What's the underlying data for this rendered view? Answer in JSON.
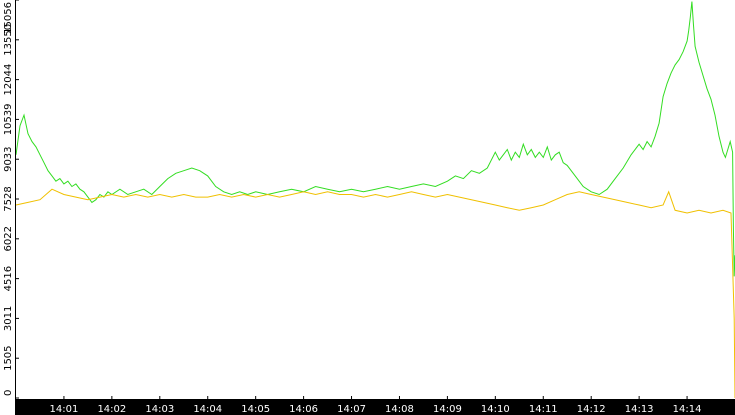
{
  "chart_data": {
    "type": "line",
    "title": "",
    "xlabel": "",
    "ylabel": "",
    "x_range": [
      "14:00:00",
      "14:15:00"
    ],
    "ylim": [
      0,
      15056
    ],
    "x_ticks": [
      "14:01",
      "14:02",
      "14:03",
      "14:04",
      "14:05",
      "14:06",
      "14:07",
      "14:08",
      "14:09",
      "14:10",
      "14:11",
      "14:12",
      "14:13",
      "14:14"
    ],
    "y_ticks": [
      "0",
      "1505",
      "3011",
      "4516",
      "6022",
      "7528",
      "9033",
      "10539",
      "12044",
      "13550",
      "15056"
    ],
    "grid": false,
    "legend": "none",
    "series": [
      {
        "color": "#33dd22",
        "points": [
          [
            "14:00:00",
            9200
          ],
          [
            "14:00:05",
            10300
          ],
          [
            "14:00:10",
            10700
          ],
          [
            "14:00:15",
            10000
          ],
          [
            "14:00:20",
            9700
          ],
          [
            "14:00:25",
            9500
          ],
          [
            "14:00:30",
            9200
          ],
          [
            "14:00:35",
            8900
          ],
          [
            "14:00:40",
            8600
          ],
          [
            "14:00:45",
            8400
          ],
          [
            "14:00:50",
            8200
          ],
          [
            "14:00:55",
            8300
          ],
          [
            "14:01:00",
            8100
          ],
          [
            "14:01:05",
            8200
          ],
          [
            "14:01:10",
            8000
          ],
          [
            "14:01:15",
            8100
          ],
          [
            "14:01:20",
            7900
          ],
          [
            "14:01:25",
            7800
          ],
          [
            "14:01:30",
            7600
          ],
          [
            "14:01:35",
            7400
          ],
          [
            "14:01:40",
            7500
          ],
          [
            "14:01:45",
            7700
          ],
          [
            "14:01:50",
            7600
          ],
          [
            "14:01:55",
            7800
          ],
          [
            "14:02:00",
            7700
          ],
          [
            "14:02:10",
            7900
          ],
          [
            "14:02:20",
            7700
          ],
          [
            "14:02:30",
            7800
          ],
          [
            "14:02:40",
            7900
          ],
          [
            "14:02:50",
            7700
          ],
          [
            "14:03:00",
            8000
          ],
          [
            "14:03:10",
            8300
          ],
          [
            "14:03:20",
            8500
          ],
          [
            "14:03:30",
            8600
          ],
          [
            "14:03:40",
            8700
          ],
          [
            "14:03:50",
            8600
          ],
          [
            "14:04:00",
            8400
          ],
          [
            "14:04:10",
            8000
          ],
          [
            "14:04:20",
            7800
          ],
          [
            "14:04:30",
            7700
          ],
          [
            "14:04:40",
            7800
          ],
          [
            "14:04:50",
            7700
          ],
          [
            "14:05:00",
            7800
          ],
          [
            "14:05:15",
            7700
          ],
          [
            "14:05:30",
            7800
          ],
          [
            "14:05:45",
            7900
          ],
          [
            "14:06:00",
            7800
          ],
          [
            "14:06:15",
            8000
          ],
          [
            "14:06:30",
            7900
          ],
          [
            "14:06:45",
            7800
          ],
          [
            "14:07:00",
            7900
          ],
          [
            "14:07:15",
            7800
          ],
          [
            "14:07:30",
            7900
          ],
          [
            "14:07:45",
            8000
          ],
          [
            "14:08:00",
            7900
          ],
          [
            "14:08:15",
            8000
          ],
          [
            "14:08:30",
            8100
          ],
          [
            "14:08:45",
            8000
          ],
          [
            "14:09:00",
            8200
          ],
          [
            "14:09:10",
            8400
          ],
          [
            "14:09:20",
            8300
          ],
          [
            "14:09:30",
            8600
          ],
          [
            "14:09:40",
            8500
          ],
          [
            "14:09:50",
            8700
          ],
          [
            "14:10:00",
            9300
          ],
          [
            "14:10:05",
            9000
          ],
          [
            "14:10:10",
            9200
          ],
          [
            "14:10:15",
            9400
          ],
          [
            "14:10:20",
            9000
          ],
          [
            "14:10:25",
            9300
          ],
          [
            "14:10:30",
            9100
          ],
          [
            "14:10:35",
            9600
          ],
          [
            "14:10:40",
            9200
          ],
          [
            "14:10:45",
            9400
          ],
          [
            "14:10:50",
            9100
          ],
          [
            "14:10:55",
            9300
          ],
          [
            "14:11:00",
            9100
          ],
          [
            "14:11:05",
            9500
          ],
          [
            "14:11:10",
            9000
          ],
          [
            "14:11:15",
            9200
          ],
          [
            "14:11:20",
            9300
          ],
          [
            "14:11:25",
            8900
          ],
          [
            "14:11:30",
            8800
          ],
          [
            "14:11:40",
            8400
          ],
          [
            "14:11:50",
            8000
          ],
          [
            "14:12:00",
            7800
          ],
          [
            "14:12:10",
            7700
          ],
          [
            "14:12:20",
            7900
          ],
          [
            "14:12:30",
            8300
          ],
          [
            "14:12:40",
            8700
          ],
          [
            "14:12:50",
            9200
          ],
          [
            "14:13:00",
            9600
          ],
          [
            "14:13:05",
            9400
          ],
          [
            "14:13:10",
            9700
          ],
          [
            "14:13:15",
            9500
          ],
          [
            "14:13:20",
            9900
          ],
          [
            "14:13:25",
            10400
          ],
          [
            "14:13:30",
            11400
          ],
          [
            "14:13:35",
            11900
          ],
          [
            "14:13:40",
            12300
          ],
          [
            "14:13:45",
            12600
          ],
          [
            "14:13:50",
            12800
          ],
          [
            "14:13:55",
            13100
          ],
          [
            "14:14:00",
            13500
          ],
          [
            "14:14:02",
            13900
          ],
          [
            "14:14:04",
            14400
          ],
          [
            "14:14:06",
            15000
          ],
          [
            "14:14:08",
            14100
          ],
          [
            "14:14:10",
            13300
          ],
          [
            "14:14:15",
            12700
          ],
          [
            "14:14:20",
            12200
          ],
          [
            "14:14:25",
            11700
          ],
          [
            "14:14:30",
            11300
          ],
          [
            "14:14:35",
            10700
          ],
          [
            "14:14:40",
            9900
          ],
          [
            "14:14:45",
            9300
          ],
          [
            "14:14:48",
            9100
          ],
          [
            "14:14:51",
            9400
          ],
          [
            "14:14:54",
            9700
          ],
          [
            "14:14:57",
            9300
          ],
          [
            "14:14:58",
            6400
          ],
          [
            "14:14:59",
            4600
          ],
          [
            "14:15:00",
            5400
          ]
        ]
      },
      {
        "color": "#f0c000",
        "points": [
          [
            "14:00:00",
            7300
          ],
          [
            "14:00:15",
            7400
          ],
          [
            "14:00:30",
            7500
          ],
          [
            "14:00:45",
            7900
          ],
          [
            "14:01:00",
            7700
          ],
          [
            "14:01:15",
            7600
          ],
          [
            "14:01:30",
            7500
          ],
          [
            "14:01:45",
            7600
          ],
          [
            "14:02:00",
            7700
          ],
          [
            "14:02:15",
            7600
          ],
          [
            "14:02:30",
            7700
          ],
          [
            "14:02:45",
            7600
          ],
          [
            "14:03:00",
            7700
          ],
          [
            "14:03:15",
            7600
          ],
          [
            "14:03:30",
            7700
          ],
          [
            "14:03:45",
            7600
          ],
          [
            "14:04:00",
            7600
          ],
          [
            "14:04:15",
            7700
          ],
          [
            "14:04:30",
            7600
          ],
          [
            "14:04:45",
            7700
          ],
          [
            "14:05:00",
            7600
          ],
          [
            "14:05:15",
            7700
          ],
          [
            "14:05:30",
            7600
          ],
          [
            "14:05:45",
            7700
          ],
          [
            "14:06:00",
            7800
          ],
          [
            "14:06:15",
            7700
          ],
          [
            "14:06:30",
            7800
          ],
          [
            "14:06:45",
            7700
          ],
          [
            "14:07:00",
            7700
          ],
          [
            "14:07:15",
            7600
          ],
          [
            "14:07:30",
            7700
          ],
          [
            "14:07:45",
            7600
          ],
          [
            "14:08:00",
            7700
          ],
          [
            "14:08:15",
            7800
          ],
          [
            "14:08:30",
            7700
          ],
          [
            "14:08:45",
            7600
          ],
          [
            "14:09:00",
            7700
          ],
          [
            "14:09:15",
            7600
          ],
          [
            "14:09:30",
            7500
          ],
          [
            "14:09:45",
            7400
          ],
          [
            "14:10:00",
            7300
          ],
          [
            "14:10:15",
            7200
          ],
          [
            "14:10:30",
            7100
          ],
          [
            "14:10:45",
            7200
          ],
          [
            "14:11:00",
            7300
          ],
          [
            "14:11:15",
            7500
          ],
          [
            "14:11:30",
            7700
          ],
          [
            "14:11:45",
            7800
          ],
          [
            "14:12:00",
            7700
          ],
          [
            "14:12:15",
            7600
          ],
          [
            "14:12:30",
            7500
          ],
          [
            "14:12:45",
            7400
          ],
          [
            "14:13:00",
            7300
          ],
          [
            "14:13:15",
            7200
          ],
          [
            "14:13:30",
            7300
          ],
          [
            "14:13:37",
            7800
          ],
          [
            "14:13:45",
            7100
          ],
          [
            "14:14:00",
            7000
          ],
          [
            "14:14:15",
            7100
          ],
          [
            "14:14:30",
            7000
          ],
          [
            "14:14:45",
            7100
          ],
          [
            "14:14:55",
            7000
          ],
          [
            "14:14:59",
            3000
          ],
          [
            "14:15:00",
            0
          ]
        ]
      }
    ]
  }
}
